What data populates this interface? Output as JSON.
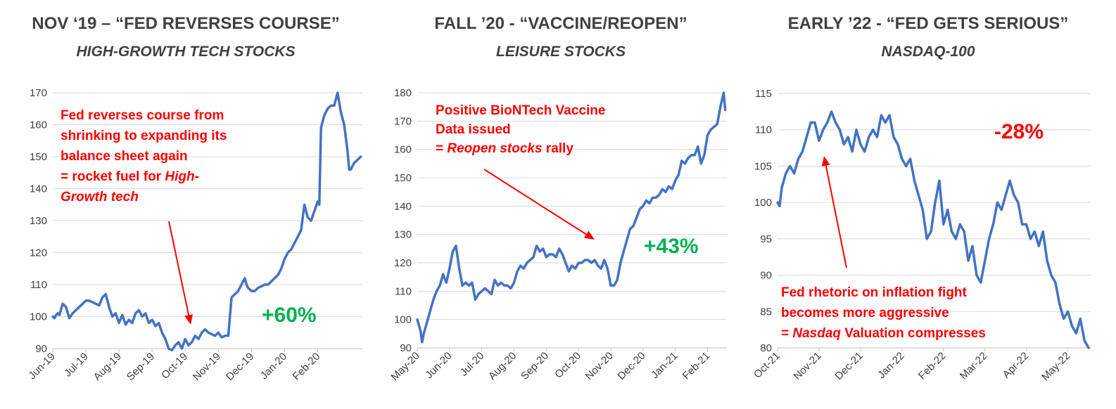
{
  "colors": {
    "line": "#4472c4",
    "grid": "#d9d9d9",
    "annotation": "#ff0000",
    "gain": "#00b050",
    "loss": "#ff0000",
    "title": "#404040"
  },
  "chart_data": [
    {
      "type": "line",
      "title": "NOV ‘19 – “FED REVERSES COURSE”",
      "subtitle": "HIGH-GROWTH TECH STOCKS",
      "xlabel": "",
      "ylabel": "",
      "ylim": [
        90,
        170
      ],
      "yticks": [
        90,
        100,
        110,
        120,
        130,
        140,
        150,
        160,
        170
      ],
      "xticks": [
        "Jun-19",
        "Jul-19",
        "Aug-19",
        "Sep-19",
        "Oct-19",
        "Nov-19",
        "Dec-19",
        "Jan-20",
        "Feb-20"
      ],
      "xlim": [
        0,
        9.35
      ],
      "grid": "horizontal",
      "x": [
        0,
        0.05,
        0.1,
        0.15,
        0.2,
        0.3,
        0.4,
        0.5,
        0.6,
        0.7,
        0.8,
        0.9,
        1.0,
        1.1,
        1.2,
        1.3,
        1.4,
        1.5,
        1.6,
        1.7,
        1.8,
        1.9,
        2.0,
        2.1,
        2.2,
        2.3,
        2.4,
        2.5,
        2.6,
        2.7,
        2.8,
        2.9,
        3.0,
        3.1,
        3.2,
        3.3,
        3.4,
        3.5,
        3.6,
        3.7,
        3.8,
        3.9,
        4.0,
        4.1,
        4.2,
        4.3,
        4.4,
        4.5,
        4.6,
        4.7,
        4.8,
        4.9,
        5.0,
        5.1,
        5.2,
        5.3,
        5.4,
        5.5,
        5.6,
        5.7,
        5.8,
        5.85,
        5.9,
        6.0,
        6.1,
        6.2,
        6.3,
        6.4,
        6.5,
        6.6,
        6.7,
        6.8,
        6.9,
        7.0,
        7.1,
        7.2,
        7.3,
        7.4,
        7.5,
        7.6,
        7.7,
        7.8,
        7.9,
        8.0,
        8.05,
        8.1,
        8.2,
        8.3,
        8.4,
        8.5,
        8.6,
        8.7,
        8.8,
        8.9,
        8.95,
        9.0,
        9.1,
        9.2,
        9.3
      ],
      "values": [
        100,
        99.5,
        100.5,
        101,
        100.5,
        104,
        103,
        99.5,
        101,
        102,
        103,
        104,
        105,
        105,
        104.5,
        104,
        103.5,
        106,
        107,
        103,
        100,
        101,
        98,
        100.5,
        97.5,
        99,
        98,
        101,
        102,
        100,
        101,
        98,
        99,
        97,
        98,
        95,
        93,
        90,
        89.5,
        91,
        92,
        90,
        93,
        91,
        92,
        94,
        93,
        95,
        96,
        95,
        94.5,
        94,
        95,
        93.5,
        94,
        94,
        106,
        107,
        108,
        110,
        112,
        110,
        109,
        108,
        108,
        109,
        109.5,
        110,
        110,
        111,
        112,
        113,
        115,
        118,
        120,
        121,
        123,
        125,
        127,
        135,
        131,
        130,
        133,
        136,
        135,
        159,
        163,
        165,
        166,
        166,
        170,
        164,
        160,
        152,
        146,
        146,
        148,
        149,
        150
      ]
    },
    {
      "type": "line",
      "title": "FALL ’20 - “VACCINE/REOPEN”",
      "subtitle": "LEISURE STOCKS",
      "xlabel": "",
      "ylabel": "",
      "ylim": [
        90,
        180
      ],
      "yticks": [
        90,
        100,
        110,
        120,
        130,
        140,
        150,
        160,
        170,
        180
      ],
      "xticks": [
        "May-20",
        "Jun-20",
        "Jul-20",
        "Aug-20",
        "Sep-20",
        "Oct-20",
        "Nov-20",
        "Dec-20",
        "Jan-21",
        "Feb-21"
      ],
      "xlim": [
        0,
        9.6
      ],
      "grid": "horizontal",
      "x": [
        0,
        0.05,
        0.1,
        0.15,
        0.2,
        0.3,
        0.4,
        0.5,
        0.6,
        0.7,
        0.8,
        0.9,
        1.0,
        1.05,
        1.1,
        1.2,
        1.3,
        1.4,
        1.5,
        1.6,
        1.7,
        1.8,
        1.9,
        2.0,
        2.1,
        2.2,
        2.3,
        2.4,
        2.5,
        2.6,
        2.7,
        2.8,
        2.9,
        3.0,
        3.1,
        3.2,
        3.3,
        3.4,
        3.5,
        3.6,
        3.7,
        3.8,
        3.9,
        4.0,
        4.1,
        4.2,
        4.3,
        4.4,
        4.5,
        4.6,
        4.7,
        4.8,
        4.9,
        5.0,
        5.1,
        5.2,
        5.3,
        5.4,
        5.5,
        5.6,
        5.7,
        5.8,
        5.9,
        6.0,
        6.1,
        6.2,
        6.3,
        6.4,
        6.5,
        6.6,
        6.7,
        6.8,
        6.9,
        7.0,
        7.1,
        7.2,
        7.3,
        7.4,
        7.5,
        7.6,
        7.7,
        7.8,
        7.9,
        8.0,
        8.1,
        8.2,
        8.3,
        8.4,
        8.5,
        8.6,
        8.7,
        8.8,
        8.9,
        9.0,
        9.1,
        9.2,
        9.3,
        9.4,
        9.5,
        9.55
      ],
      "values": [
        100,
        98,
        96,
        92,
        95,
        99,
        103,
        107,
        110,
        112,
        116,
        113,
        118,
        121,
        124,
        126,
        118,
        112,
        113,
        112,
        113,
        107,
        109,
        110,
        111,
        110,
        109,
        114,
        112,
        113,
        112,
        112,
        111,
        113,
        117,
        119,
        118,
        120,
        121,
        122,
        126,
        124,
        125,
        122,
        123,
        123,
        122,
        125,
        123,
        120,
        117,
        119,
        118,
        120,
        120,
        121,
        121,
        120,
        121,
        119,
        118,
        121,
        118,
        112,
        112,
        114,
        120,
        124,
        128,
        132,
        133,
        136,
        139,
        140,
        142,
        141,
        143,
        143,
        144,
        146,
        145,
        147,
        146,
        149,
        151,
        156,
        155,
        157,
        158,
        158,
        161,
        155,
        158,
        165,
        167,
        168,
        169,
        175,
        180,
        174
      ]
    },
    {
      "type": "line",
      "title": "EARLY ’22 - “FED GETS SERIOUS”",
      "subtitle": "NASDAQ-100",
      "xlabel": "",
      "ylabel": "",
      "ylim": [
        80,
        115
      ],
      "yticks": [
        80,
        85,
        90,
        95,
        100,
        105,
        110,
        115
      ],
      "xticks": [
        "Oct-21",
        "Nov-21",
        "Dec-21",
        "Jan-22",
        "Feb-22",
        "Mar-22",
        "Apr-22",
        "May-22"
      ],
      "xlim": [
        0,
        7.55
      ],
      "grid": "horizontal",
      "x": [
        0,
        0.05,
        0.1,
        0.2,
        0.3,
        0.4,
        0.5,
        0.6,
        0.7,
        0.8,
        0.9,
        1.0,
        1.1,
        1.2,
        1.3,
        1.4,
        1.5,
        1.6,
        1.7,
        1.8,
        1.9,
        2.0,
        2.1,
        2.2,
        2.3,
        2.4,
        2.5,
        2.6,
        2.7,
        2.8,
        2.9,
        3.0,
        3.1,
        3.2,
        3.3,
        3.4,
        3.5,
        3.6,
        3.7,
        3.8,
        3.9,
        4.0,
        4.1,
        4.2,
        4.3,
        4.4,
        4.5,
        4.6,
        4.7,
        4.8,
        4.9,
        5.0,
        5.1,
        5.2,
        5.3,
        5.4,
        5.5,
        5.6,
        5.7,
        5.8,
        5.9,
        6.0,
        6.1,
        6.2,
        6.3,
        6.4,
        6.5,
        6.6,
        6.7,
        6.8,
        6.9,
        7.0,
        7.1,
        7.2,
        7.3,
        7.4,
        7.5
      ],
      "values": [
        100,
        99.5,
        102,
        104,
        105,
        104,
        106,
        107,
        109,
        111,
        111,
        108.5,
        110,
        111,
        112.5,
        111,
        110,
        108,
        109,
        107,
        110,
        108,
        107,
        109,
        110,
        109,
        112,
        111,
        112,
        109,
        108,
        106,
        105,
        106,
        103,
        101,
        99,
        95,
        96,
        100,
        103,
        97,
        99,
        96,
        95,
        97,
        96,
        92,
        94,
        90,
        89,
        92,
        95,
        97,
        100,
        99,
        101,
        103,
        101,
        100,
        97,
        97,
        95,
        96,
        94,
        96,
        92,
        90,
        89,
        86,
        84,
        85,
        83,
        82,
        84,
        81,
        80
      ]
    }
  ],
  "panels": [
    {
      "title": "NOV ‘19 – “FED REVERSES COURSE”",
      "subtitle": "HIGH-GROWTH TECH STOCKS",
      "annotation_lines": [
        "Fed reverses course from",
        "shrinking to expanding its",
        "balance sheet again",
        "= rocket fuel for |High-|",
        "|Growth tech|"
      ],
      "callout": "+60%"
    },
    {
      "title": "FALL ’20 - “VACCINE/REOPEN”",
      "subtitle": "LEISURE STOCKS",
      "annotation_lines": [
        "Positive BioNTech Vaccine",
        "Data issued",
        "= |Reopen stocks| rally"
      ],
      "callout": "+43%"
    },
    {
      "title": "EARLY ’22 - “FED GETS SERIOUS”",
      "subtitle": "NASDAQ-100",
      "annotation_lines": [
        "Fed rhetoric on inflation fight",
        "becomes more aggressive",
        "= |Nasdaq| Valuation compresses"
      ],
      "callout": "-28%"
    }
  ]
}
